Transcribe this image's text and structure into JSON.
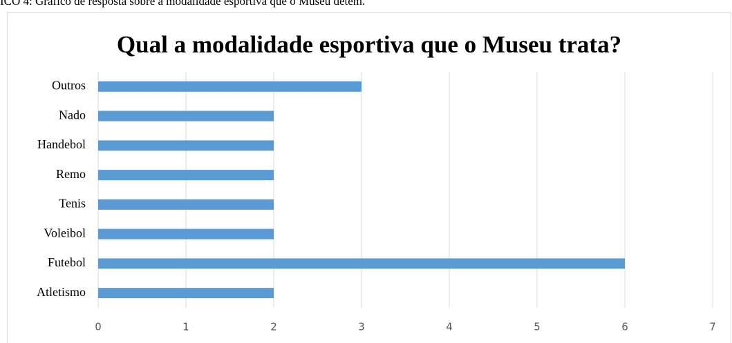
{
  "caption": "ICO 4: Gráfico de resposta sobre a modalidade esportiva que o Museu detém.",
  "chart_data": {
    "type": "barh",
    "title": "Qual a modalidade esportiva que o Museu trata?",
    "categories": [
      "Atletismo",
      "Futebol",
      "Voleibol",
      "Tenis",
      "Remo",
      "Handebol",
      "Nado",
      "Outros"
    ],
    "values": [
      2,
      6,
      2,
      2,
      2,
      2,
      2,
      3
    ],
    "color": "#5b9bd5",
    "xlim": [
      0,
      7
    ],
    "xticks": [
      0,
      1,
      2,
      3,
      4,
      5,
      6,
      7
    ],
    "grid": true
  }
}
